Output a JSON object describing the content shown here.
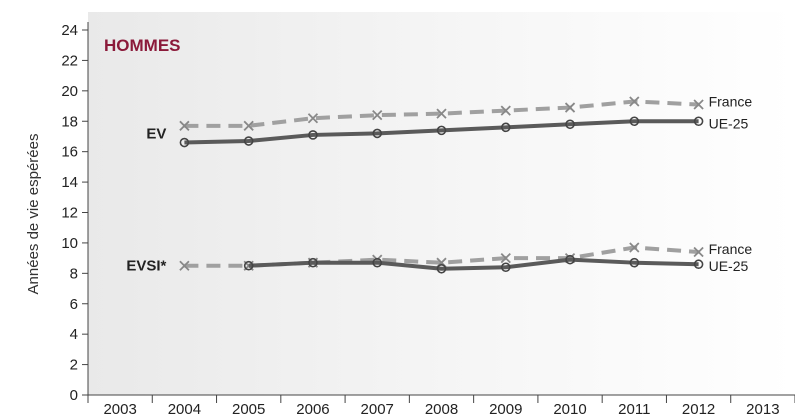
{
  "chart_data": {
    "type": "line",
    "title": "HOMMES",
    "ylabel": "Années de vie espérées",
    "xlabel": "",
    "x": [
      "2003",
      "2004",
      "2005",
      "2006",
      "2007",
      "2008",
      "2009",
      "2010",
      "2011",
      "2012",
      "2013"
    ],
    "yticks": [
      0,
      2,
      4,
      6,
      8,
      10,
      12,
      14,
      16,
      18,
      20,
      22,
      24
    ],
    "ylim": [
      0,
      24
    ],
    "grid": false,
    "groups": [
      {
        "label": "EV",
        "series": [
          {
            "name": "France",
            "marker": "x",
            "style": "dashed",
            "color": "#a0a0a0",
            "values": [
              null,
              17.7,
              17.7,
              18.2,
              18.4,
              18.5,
              18.7,
              18.9,
              19.3,
              19.1,
              null
            ]
          },
          {
            "name": "UE-25",
            "marker": "o",
            "style": "solid",
            "color": "#5a5a5a",
            "values": [
              null,
              16.6,
              16.7,
              17.1,
              17.2,
              17.4,
              17.6,
              17.8,
              18.0,
              18.0,
              null
            ]
          }
        ]
      },
      {
        "label": "EVSI*",
        "series": [
          {
            "name": "France",
            "marker": "x",
            "style": "dashed",
            "color": "#a0a0a0",
            "values": [
              null,
              8.5,
              8.5,
              8.7,
              8.9,
              8.7,
              9.0,
              9.0,
              9.7,
              9.4,
              null
            ]
          },
          {
            "name": "UE-25",
            "marker": "o",
            "style": "solid",
            "color": "#5a5a5a",
            "values": [
              null,
              null,
              8.5,
              8.7,
              8.7,
              8.3,
              8.4,
              8.9,
              8.7,
              8.6,
              null
            ]
          }
        ]
      }
    ],
    "colors": {
      "title": "#8b1a3a",
      "axis": "#444444",
      "text": "#222222"
    }
  }
}
